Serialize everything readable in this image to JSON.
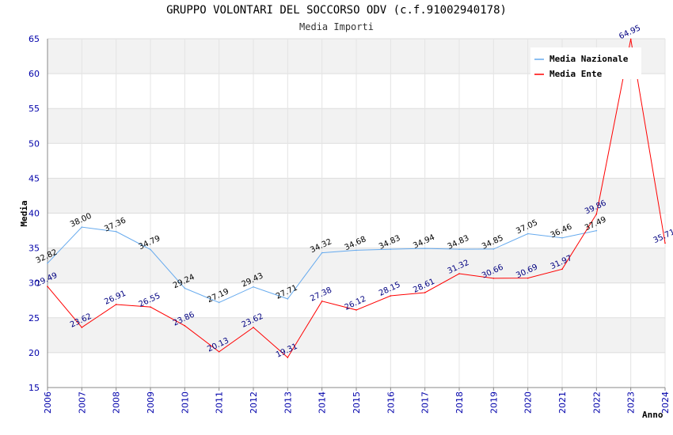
{
  "chart_data": {
    "type": "line",
    "title": "GRUPPO VOLONTARI DEL SOCCORSO ODV (c.f.91002940178)",
    "subtitle": "Media Importi",
    "xlabel": "Anno",
    "ylabel": "Media",
    "ylim": [
      15,
      65
    ],
    "yticks": [
      15,
      20,
      25,
      30,
      35,
      40,
      45,
      50,
      55,
      60,
      65
    ],
    "grid": true,
    "legend_position": "top-right",
    "x": [
      2006,
      2007,
      2008,
      2009,
      2010,
      2011,
      2012,
      2013,
      2014,
      2015,
      2016,
      2017,
      2018,
      2019,
      2020,
      2021,
      2022,
      2023,
      2024
    ],
    "series": [
      {
        "name": "Media Nazionale",
        "color": "#66aaee",
        "label_color": "#000000",
        "values": [
          32.82,
          38.0,
          37.36,
          34.79,
          29.24,
          27.19,
          29.43,
          27.71,
          34.32,
          34.68,
          34.83,
          34.94,
          34.83,
          34.85,
          37.05,
          36.46,
          37.49,
          null,
          null
        ],
        "labels": [
          "32.82",
          "38.00",
          "37.36",
          "34.79",
          "29.24",
          "27.19",
          "29.43",
          "27.71",
          "34.32",
          "34.68",
          "34.83",
          "34.94",
          "34.83",
          "34.85",
          "37.05",
          "36.46",
          "37.49",
          null,
          null
        ]
      },
      {
        "name": "Media Ente",
        "color": "#ff0000",
        "label_color": "#000080",
        "values": [
          29.49,
          23.62,
          26.91,
          26.55,
          23.86,
          20.13,
          23.62,
          19.31,
          27.38,
          26.12,
          28.15,
          28.61,
          31.32,
          30.66,
          30.69,
          31.97,
          39.86,
          64.95,
          35.71
        ],
        "labels": [
          "29.49",
          "23.62",
          "26.91",
          "26.55",
          "23.86",
          "20.13",
          "23.62",
          "19.31",
          "27.38",
          "26.12",
          "28.15",
          "28.61",
          "31.32",
          "30.66",
          "30.69",
          "31.97",
          "39.86",
          "64.95",
          "35.71"
        ]
      }
    ]
  }
}
